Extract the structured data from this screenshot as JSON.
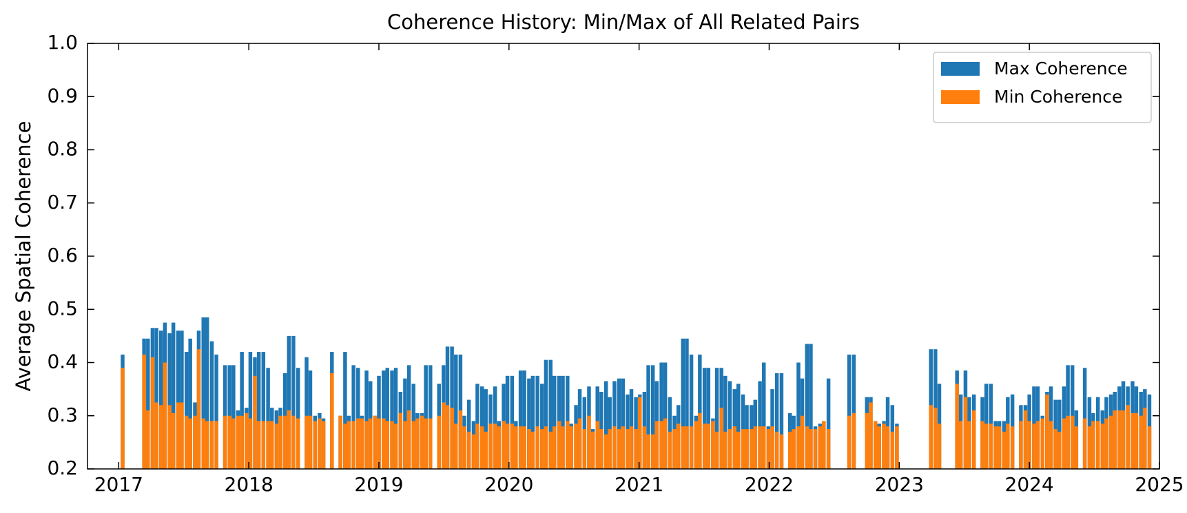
{
  "chart_data": {
    "type": "bar",
    "title": "Coherence History: Min/Max of All Related Pairs",
    "ylabel": "Average Spatial Coherence",
    "xlim": [
      2016.76,
      2025.0
    ],
    "xticks": [
      2017,
      2018,
      2019,
      2020,
      2021,
      2022,
      2023,
      2024,
      2025
    ],
    "ylim": [
      0.2,
      1.0
    ],
    "yticks": [
      0.2,
      0.3,
      0.4,
      0.5,
      0.6,
      0.7,
      0.8,
      0.9,
      {
        "value": 1.0,
        "label": "1.0"
      }
    ],
    "grid": false,
    "legend": "upper right",
    "x": [
      2017.03,
      2017.195,
      2017.225,
      2017.26,
      2017.29,
      2017.325,
      2017.355,
      2017.391,
      2017.42,
      2017.456,
      2017.485,
      2017.521,
      2017.55,
      2017.586,
      2017.615,
      2017.651,
      2017.68,
      2017.716,
      2017.751,
      2017.817,
      2017.852,
      2017.882,
      2017.917,
      2017.947,
      2017.982,
      2018.012,
      2018.047,
      2018.077,
      2018.112,
      2018.148,
      2018.178,
      2018.213,
      2018.243,
      2018.278,
      2018.308,
      2018.343,
      2018.379,
      2018.444,
      2018.473,
      2018.509,
      2018.544,
      2018.574,
      2018.639,
      2018.704,
      2018.74,
      2018.769,
      2018.805,
      2018.84,
      2018.87,
      2018.905,
      2018.935,
      2018.97,
      2019.0,
      2019.036,
      2019.065,
      2019.101,
      2019.13,
      2019.166,
      2019.201,
      2019.231,
      2019.266,
      2019.296,
      2019.331,
      2019.361,
      2019.396,
      2019.462,
      2019.497,
      2019.527,
      2019.562,
      2019.592,
      2019.627,
      2019.657,
      2019.692,
      2019.728,
      2019.757,
      2019.793,
      2019.822,
      2019.858,
      2019.893,
      2019.923,
      2019.959,
      2019.988,
      2020.024,
      2020.053,
      2020.089,
      2020.118,
      2020.154,
      2020.183,
      2020.219,
      2020.254,
      2020.284,
      2020.32,
      2020.349,
      2020.385,
      2020.414,
      2020.45,
      2020.479,
      2020.515,
      2020.544,
      2020.58,
      2020.615,
      2020.645,
      2020.68,
      2020.71,
      2020.746,
      2020.775,
      2020.811,
      2020.846,
      2020.876,
      2020.911,
      2020.941,
      2020.976,
      2021.006,
      2021.041,
      2021.071,
      2021.106,
      2021.136,
      2021.172,
      2021.201,
      2021.237,
      2021.272,
      2021.302,
      2021.337,
      2021.367,
      2021.402,
      2021.438,
      2021.467,
      2021.503,
      2021.533,
      2021.568,
      2021.598,
      2021.633,
      2021.663,
      2021.698,
      2021.734,
      2021.763,
      2021.799,
      2021.828,
      2021.864,
      2021.893,
      2021.929,
      2021.959,
      2021.994,
      2022.024,
      2022.059,
      2022.095,
      2022.16,
      2022.189,
      2022.225,
      2022.254,
      2022.29,
      2022.32,
      2022.355,
      2022.391,
      2022.42,
      2022.456,
      2022.615,
      2022.651,
      2022.751,
      2022.781,
      2022.817,
      2022.846,
      2022.882,
      2022.911,
      2022.947,
      2022.982,
      2023.243,
      2023.278,
      2023.308,
      2023.444,
      2023.473,
      2023.509,
      2023.538,
      2023.574,
      2023.639,
      2023.669,
      2023.704,
      2023.74,
      2023.769,
      2023.805,
      2023.834,
      2023.87,
      2023.935,
      2023.97,
      2024.0,
      2024.036,
      2024.065,
      2024.101,
      2024.136,
      2024.166,
      2024.201,
      2024.231,
      2024.266,
      2024.296,
      2024.331,
      2024.361,
      2024.426,
      2024.462,
      2024.491,
      2024.527,
      2024.562,
      2024.592,
      2024.627,
      2024.657,
      2024.692,
      2024.722,
      2024.757,
      2024.793,
      2024.822,
      2024.858,
      2024.888,
      2024.923
    ],
    "series": [
      {
        "name": "Max Coherence",
        "color": "#1f77b4",
        "values": [
          0.415,
          0.445,
          0.445,
          0.465,
          0.465,
          0.46,
          0.475,
          0.455,
          0.475,
          0.46,
          0.46,
          0.42,
          0.445,
          0.325,
          0.46,
          0.485,
          0.485,
          0.44,
          0.415,
          0.395,
          0.395,
          0.395,
          0.31,
          0.42,
          0.315,
          0.42,
          0.41,
          0.42,
          0.42,
          0.39,
          0.315,
          0.31,
          0.315,
          0.38,
          0.45,
          0.45,
          0.39,
          0.41,
          0.385,
          0.3,
          0.305,
          0.295,
          0.42,
          0.3,
          0.42,
          0.3,
          0.395,
          0.39,
          0.3,
          0.385,
          0.365,
          0.3,
          0.375,
          0.385,
          0.39,
          0.385,
          0.39,
          0.345,
          0.37,
          0.395,
          0.36,
          0.305,
          0.305,
          0.395,
          0.395,
          0.36,
          0.395,
          0.43,
          0.43,
          0.415,
          0.415,
          0.3,
          0.33,
          0.29,
          0.36,
          0.355,
          0.35,
          0.34,
          0.355,
          0.29,
          0.36,
          0.375,
          0.375,
          0.29,
          0.385,
          0.385,
          0.37,
          0.375,
          0.375,
          0.36,
          0.405,
          0.405,
          0.375,
          0.375,
          0.375,
          0.375,
          0.285,
          0.32,
          0.35,
          0.335,
          0.355,
          0.275,
          0.355,
          0.345,
          0.365,
          0.335,
          0.365,
          0.37,
          0.37,
          0.34,
          0.35,
          0.335,
          0.34,
          0.345,
          0.395,
          0.395,
          0.365,
          0.4,
          0.4,
          0.335,
          0.3,
          0.32,
          0.445,
          0.445,
          0.415,
          0.3,
          0.415,
          0.39,
          0.39,
          0.295,
          0.39,
          0.39,
          0.375,
          0.365,
          0.35,
          0.36,
          0.34,
          0.32,
          0.32,
          0.33,
          0.365,
          0.4,
          0.28,
          0.35,
          0.38,
          0.38,
          0.305,
          0.3,
          0.4,
          0.37,
          0.435,
          0.435,
          0.28,
          0.285,
          0.29,
          0.37,
          0.415,
          0.415,
          0.335,
          0.335,
          0.29,
          0.285,
          0.29,
          0.335,
          0.32,
          0.285,
          0.425,
          0.425,
          0.36,
          0.385,
          0.34,
          0.385,
          0.335,
          0.34,
          0.335,
          0.36,
          0.36,
          0.29,
          0.29,
          0.29,
          0.335,
          0.34,
          0.32,
          0.32,
          0.34,
          0.355,
          0.355,
          0.3,
          0.345,
          0.355,
          0.33,
          0.33,
          0.355,
          0.395,
          0.395,
          0.31,
          0.39,
          0.335,
          0.305,
          0.335,
          0.31,
          0.335,
          0.34,
          0.345,
          0.355,
          0.365,
          0.355,
          0.365,
          0.355,
          0.345,
          0.35,
          0.34
        ]
      },
      {
        "name": "Min Coherence",
        "color": "#ff7f0e",
        "values": [
          0.39,
          0.415,
          0.31,
          0.41,
          0.325,
          0.32,
          0.4,
          0.32,
          0.305,
          0.325,
          0.325,
          0.3,
          0.295,
          0.3,
          0.425,
          0.295,
          0.29,
          0.29,
          0.29,
          0.3,
          0.3,
          0.295,
          0.3,
          0.3,
          0.305,
          0.295,
          0.375,
          0.29,
          0.29,
          0.29,
          0.29,
          0.285,
          0.3,
          0.3,
          0.31,
          0.3,
          0.295,
          0.3,
          0.3,
          0.29,
          0.295,
          0.29,
          0.38,
          0.3,
          0.285,
          0.29,
          0.29,
          0.295,
          0.295,
          0.29,
          0.295,
          0.3,
          0.295,
          0.295,
          0.29,
          0.29,
          0.285,
          0.305,
          0.29,
          0.31,
          0.29,
          0.295,
          0.3,
          0.295,
          0.295,
          0.3,
          0.325,
          0.32,
          0.315,
          0.285,
          0.31,
          0.28,
          0.27,
          0.265,
          0.285,
          0.28,
          0.27,
          0.285,
          0.285,
          0.28,
          0.29,
          0.285,
          0.285,
          0.28,
          0.28,
          0.28,
          0.275,
          0.27,
          0.28,
          0.275,
          0.28,
          0.27,
          0.28,
          0.29,
          0.28,
          0.29,
          0.28,
          0.285,
          0.295,
          0.275,
          0.3,
          0.27,
          0.29,
          0.275,
          0.265,
          0.275,
          0.28,
          0.275,
          0.28,
          0.275,
          0.28,
          0.275,
          0.335,
          0.28,
          0.265,
          0.265,
          0.29,
          0.29,
          0.295,
          0.27,
          0.275,
          0.285,
          0.28,
          0.28,
          0.28,
          0.29,
          0.305,
          0.285,
          0.285,
          0.29,
          0.27,
          0.315,
          0.27,
          0.275,
          0.28,
          0.27,
          0.275,
          0.275,
          0.275,
          0.28,
          0.28,
          0.28,
          0.275,
          0.28,
          0.27,
          0.265,
          0.27,
          0.275,
          0.28,
          0.3,
          0.28,
          0.275,
          0.275,
          0.28,
          0.29,
          0.275,
          0.3,
          0.305,
          0.305,
          0.325,
          0.29,
          0.28,
          0.285,
          0.28,
          0.27,
          0.28,
          0.32,
          0.315,
          0.285,
          0.36,
          0.29,
          0.335,
          0.29,
          0.31,
          0.29,
          0.285,
          0.285,
          0.28,
          0.28,
          0.27,
          0.285,
          0.28,
          0.29,
          0.31,
          0.29,
          0.285,
          0.29,
          0.295,
          0.34,
          0.29,
          0.275,
          0.27,
          0.295,
          0.3,
          0.3,
          0.28,
          0.295,
          0.28,
          0.29,
          0.29,
          0.285,
          0.295,
          0.3,
          0.31,
          0.31,
          0.31,
          0.32,
          0.305,
          0.305,
          0.3,
          0.315,
          0.28
        ]
      }
    ]
  }
}
